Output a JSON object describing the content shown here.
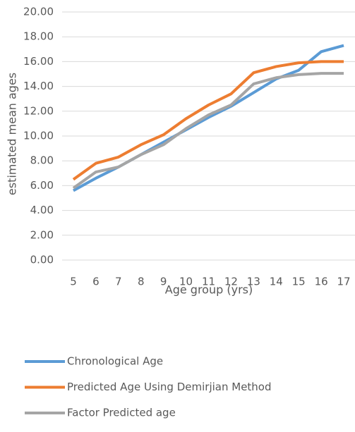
{
  "chart_data": {
    "type": "line",
    "y_label": "estimated mean ages",
    "x_label": "Age group (yrs)",
    "categories": [
      "5",
      "6",
      "7",
      "8",
      "9",
      "10",
      "11",
      "12",
      "13",
      "14",
      "15",
      "16",
      "17"
    ],
    "series": [
      {
        "name": "Chronological Age",
        "color": "#5b9bd5",
        "values": [
          5.6,
          6.6,
          7.5,
          8.5,
          9.5,
          10.5,
          11.5,
          12.4,
          13.5,
          14.6,
          15.3,
          16.8,
          17.3
        ]
      },
      {
        "name": "Predicted Age Using Demirjian Method",
        "color": "#ed7d31",
        "values": [
          6.5,
          7.8,
          8.3,
          9.3,
          10.1,
          11.4,
          12.5,
          13.4,
          15.1,
          15.6,
          15.9,
          16.0,
          16.0
        ]
      },
      {
        "name": "Factor Predicted age",
        "color": "#a5a5a5",
        "values": [
          5.8,
          7.1,
          7.5,
          8.5,
          9.3,
          10.6,
          11.7,
          12.5,
          14.2,
          14.7,
          14.95,
          15.05,
          15.05
        ]
      }
    ],
    "ylim": [
      0,
      20
    ],
    "yticks": [
      {
        "value": 0,
        "label": "0.00"
      },
      {
        "value": 2,
        "label": "2.00"
      },
      {
        "value": 4,
        "label": "4.00"
      },
      {
        "value": 6,
        "label": "6.00"
      },
      {
        "value": 8,
        "label": "8.00"
      },
      {
        "value": 10,
        "label": "10.00"
      },
      {
        "value": 12,
        "label": "12.00"
      },
      {
        "value": 14,
        "label": "14.00"
      },
      {
        "value": 16,
        "label": "16.00"
      },
      {
        "value": 18,
        "label": "18.00"
      },
      {
        "value": 20,
        "label": "20.00"
      }
    ],
    "grid": true,
    "legend": "bottom"
  }
}
